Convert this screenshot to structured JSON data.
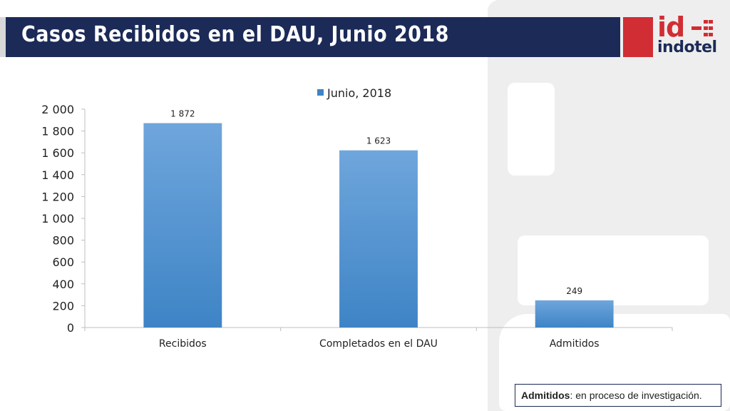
{
  "slide": {
    "title": "Casos Recibidos en el DAU, Junio 2018"
  },
  "logo": {
    "mark": "id",
    "word": "indotel",
    "icon": "indotel-logo"
  },
  "footnote": {
    "term": "Admitidos",
    "text": ": en proceso de investigación."
  },
  "colors": {
    "title_bar": "#1b2a57",
    "bar_top": "#6fa6dc",
    "bar_bottom": "#3e84c6",
    "logo_red": "#d12d34"
  },
  "chart_data": {
    "type": "bar",
    "categories": [
      "Recibidos",
      "Completados en el DAU",
      "Admitidos"
    ],
    "series": [
      {
        "name": "Junio, 2018",
        "values": [
          1872,
          1623,
          249
        ]
      }
    ],
    "data_labels": [
      "1 872",
      "1 623",
      "249"
    ],
    "yticks": [
      0,
      200,
      400,
      600,
      800,
      1000,
      1200,
      1400,
      1600,
      1800,
      2000
    ],
    "ytick_labels": [
      "0",
      "200",
      "400",
      "600",
      "800",
      "1 000",
      "1 200",
      "1 400",
      "1 600",
      "1 800",
      "2 000"
    ],
    "ylim": [
      0,
      2000
    ],
    "legend": "top-center",
    "grid": false
  }
}
